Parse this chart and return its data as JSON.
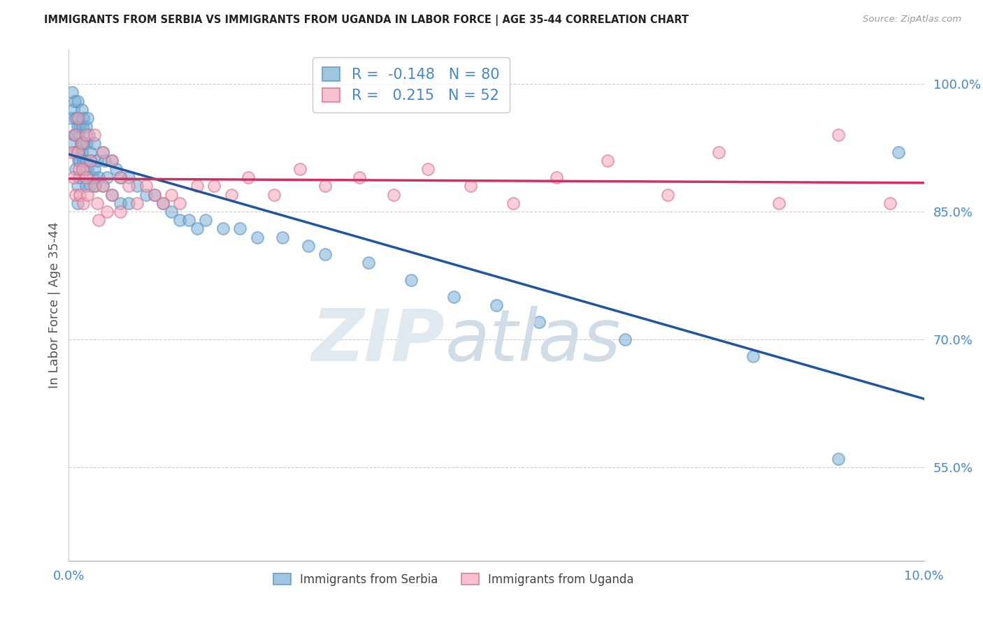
{
  "title": "IMMIGRANTS FROM SERBIA VS IMMIGRANTS FROM UGANDA IN LABOR FORCE | AGE 35-44 CORRELATION CHART",
  "source": "Source: ZipAtlas.com",
  "ylabel": "In Labor Force | Age 35-44",
  "xlim": [
    0.0,
    0.1
  ],
  "ylim": [
    0.44,
    1.04
  ],
  "yticks": [
    0.55,
    0.7,
    0.85,
    1.0
  ],
  "ytick_labels": [
    "55.0%",
    "70.0%",
    "85.0%",
    "100.0%"
  ],
  "xticks": [
    0.0,
    0.1
  ],
  "xtick_labels": [
    "0.0%",
    "10.0%"
  ],
  "serbia_R": -0.148,
  "serbia_N": 80,
  "uganda_R": 0.215,
  "uganda_N": 52,
  "serbia_color": "#7bafd4",
  "serbia_edge": "#5a90c0",
  "uganda_color": "#f4a8b8",
  "uganda_edge": "#d07090",
  "serbia_line_color": "#2255a0",
  "uganda_line_color": "#d03060",
  "serbia_x": [
    0.0003,
    0.0004,
    0.0004,
    0.0005,
    0.0006,
    0.0007,
    0.0007,
    0.0008,
    0.0008,
    0.0009,
    0.001,
    0.001,
    0.001,
    0.001,
    0.001,
    0.0011,
    0.0011,
    0.0012,
    0.0012,
    0.0013,
    0.0013,
    0.0014,
    0.0015,
    0.0015,
    0.0016,
    0.0017,
    0.0017,
    0.0018,
    0.0019,
    0.002,
    0.002,
    0.002,
    0.0021,
    0.0022,
    0.0022,
    0.0023,
    0.0025,
    0.0025,
    0.0026,
    0.0028,
    0.003,
    0.003,
    0.0031,
    0.0033,
    0.0035,
    0.004,
    0.004,
    0.0042,
    0.0045,
    0.005,
    0.005,
    0.0055,
    0.006,
    0.006,
    0.007,
    0.007,
    0.008,
    0.009,
    0.01,
    0.011,
    0.012,
    0.013,
    0.014,
    0.015,
    0.016,
    0.018,
    0.02,
    0.022,
    0.025,
    0.028,
    0.03,
    0.035,
    0.04,
    0.045,
    0.05,
    0.055,
    0.065,
    0.08,
    0.09,
    0.097
  ],
  "serbia_y": [
    0.96,
    0.99,
    0.93,
    0.97,
    0.94,
    0.98,
    0.92,
    0.96,
    0.9,
    0.94,
    0.98,
    0.95,
    0.92,
    0.88,
    0.86,
    0.96,
    0.91,
    0.94,
    0.89,
    0.95,
    0.91,
    0.93,
    0.97,
    0.92,
    0.95,
    0.96,
    0.91,
    0.93,
    0.9,
    0.95,
    0.91,
    0.88,
    0.93,
    0.96,
    0.9,
    0.94,
    0.92,
    0.88,
    0.91,
    0.89,
    0.93,
    0.9,
    0.88,
    0.91,
    0.89,
    0.92,
    0.88,
    0.91,
    0.89,
    0.91,
    0.87,
    0.9,
    0.89,
    0.86,
    0.89,
    0.86,
    0.88,
    0.87,
    0.87,
    0.86,
    0.85,
    0.84,
    0.84,
    0.83,
    0.84,
    0.83,
    0.83,
    0.82,
    0.82,
    0.81,
    0.8,
    0.79,
    0.77,
    0.75,
    0.74,
    0.72,
    0.7,
    0.68,
    0.56,
    0.92
  ],
  "uganda_x": [
    0.0004,
    0.0005,
    0.0007,
    0.0008,
    0.001,
    0.001,
    0.0012,
    0.0013,
    0.0015,
    0.0016,
    0.0017,
    0.002,
    0.002,
    0.0022,
    0.0025,
    0.003,
    0.003,
    0.0033,
    0.0035,
    0.004,
    0.004,
    0.0045,
    0.005,
    0.005,
    0.006,
    0.006,
    0.007,
    0.008,
    0.009,
    0.01,
    0.011,
    0.012,
    0.013,
    0.015,
    0.017,
    0.019,
    0.021,
    0.024,
    0.027,
    0.03,
    0.034,
    0.038,
    0.042,
    0.047,
    0.052,
    0.057,
    0.063,
    0.07,
    0.076,
    0.083,
    0.09,
    0.096
  ],
  "uganda_y": [
    0.92,
    0.89,
    0.94,
    0.87,
    0.96,
    0.92,
    0.9,
    0.87,
    0.93,
    0.9,
    0.86,
    0.94,
    0.89,
    0.87,
    0.91,
    0.94,
    0.88,
    0.86,
    0.84,
    0.92,
    0.88,
    0.85,
    0.91,
    0.87,
    0.89,
    0.85,
    0.88,
    0.86,
    0.88,
    0.87,
    0.86,
    0.87,
    0.86,
    0.88,
    0.88,
    0.87,
    0.89,
    0.87,
    0.9,
    0.88,
    0.89,
    0.87,
    0.9,
    0.88,
    0.86,
    0.89,
    0.91,
    0.87,
    0.92,
    0.86,
    0.94,
    0.86
  ]
}
